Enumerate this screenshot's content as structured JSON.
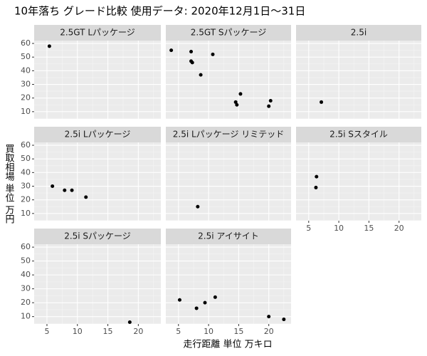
{
  "title": "10年落ち グレード比較 使用データ: 2020年12月1日～31日",
  "x_label": "走行距離 単位 万キロ",
  "y_label": "買取相場 単位 万円",
  "chart_data": [
    {
      "type": "scatter",
      "title": "2.5GT Lパッケージ",
      "x": [
        5.4
      ],
      "y": [
        58
      ],
      "xlim": [
        2.9,
        23.7
      ],
      "ylim": [
        4.7,
        62.1
      ],
      "xticks": [
        5,
        10,
        15,
        20
      ],
      "yticks": [
        10,
        20,
        30,
        40,
        50,
        60
      ]
    },
    {
      "type": "scatter",
      "title": "2.5GT Sパッケージ",
      "x": [
        3.8,
        7.1,
        7.1,
        7.3,
        8.7,
        10.7,
        15.3,
        14.5,
        14.7,
        20.3,
        20.0
      ],
      "y": [
        55,
        54,
        47,
        46,
        37,
        52,
        23,
        17,
        15,
        18,
        14
      ],
      "xlim": [
        2.9,
        23.7
      ],
      "ylim": [
        4.7,
        62.1
      ],
      "xticks": [
        5,
        10,
        15,
        20
      ],
      "yticks": [
        10,
        20,
        30,
        40,
        50,
        60
      ]
    },
    {
      "type": "scatter",
      "title": "2.5i",
      "x": [
        7.1
      ],
      "y": [
        17
      ],
      "xlim": [
        2.9,
        23.7
      ],
      "ylim": [
        4.7,
        62.1
      ],
      "xticks": [
        5,
        10,
        15,
        20
      ],
      "yticks": [
        10,
        20,
        30,
        40,
        50,
        60
      ]
    },
    {
      "type": "scatter",
      "title": "2.5i Lパッケージ",
      "x": [
        5.9,
        7.9,
        9.1,
        11.4
      ],
      "y": [
        30,
        27,
        27,
        22
      ],
      "xlim": [
        2.9,
        23.7
      ],
      "ylim": [
        4.7,
        62.1
      ],
      "xticks": [
        5,
        10,
        15,
        20
      ],
      "yticks": [
        10,
        20,
        30,
        40,
        50,
        60
      ]
    },
    {
      "type": "scatter",
      "title": "2.5i Lパッケージ リミテッド",
      "x": [
        8.2
      ],
      "y": [
        15
      ],
      "xlim": [
        2.9,
        23.7
      ],
      "ylim": [
        4.7,
        62.1
      ],
      "xticks": [
        5,
        10,
        15,
        20
      ],
      "yticks": [
        10,
        20,
        30,
        40,
        50,
        60
      ]
    },
    {
      "type": "scatter",
      "title": "2.5i Sスタイル",
      "x": [
        6.3,
        6.2
      ],
      "y": [
        37,
        29
      ],
      "xlim": [
        2.9,
        23.7
      ],
      "ylim": [
        4.7,
        62.1
      ],
      "xticks": [
        5,
        10,
        15,
        20
      ],
      "yticks": [
        10,
        20,
        30,
        40,
        50,
        60
      ]
    },
    {
      "type": "scatter",
      "title": "2.5i Sパッケージ",
      "x": [
        18.6
      ],
      "y": [
        6
      ],
      "xlim": [
        2.9,
        23.7
      ],
      "ylim": [
        4.7,
        62.1
      ],
      "xticks": [
        5,
        10,
        15,
        20
      ],
      "yticks": [
        10,
        20,
        30,
        40,
        50,
        60
      ]
    },
    {
      "type": "scatter",
      "title": "2.5i アイサイト",
      "x": [
        5.2,
        8.0,
        9.4,
        11.1,
        20.0,
        22.5
      ],
      "y": [
        22,
        16,
        20,
        24,
        10,
        8
      ],
      "xlim": [
        2.9,
        23.7
      ],
      "ylim": [
        4.7,
        62.1
      ],
      "xticks": [
        5,
        10,
        15,
        20
      ],
      "yticks": [
        10,
        20,
        30,
        40,
        50,
        60
      ]
    }
  ]
}
